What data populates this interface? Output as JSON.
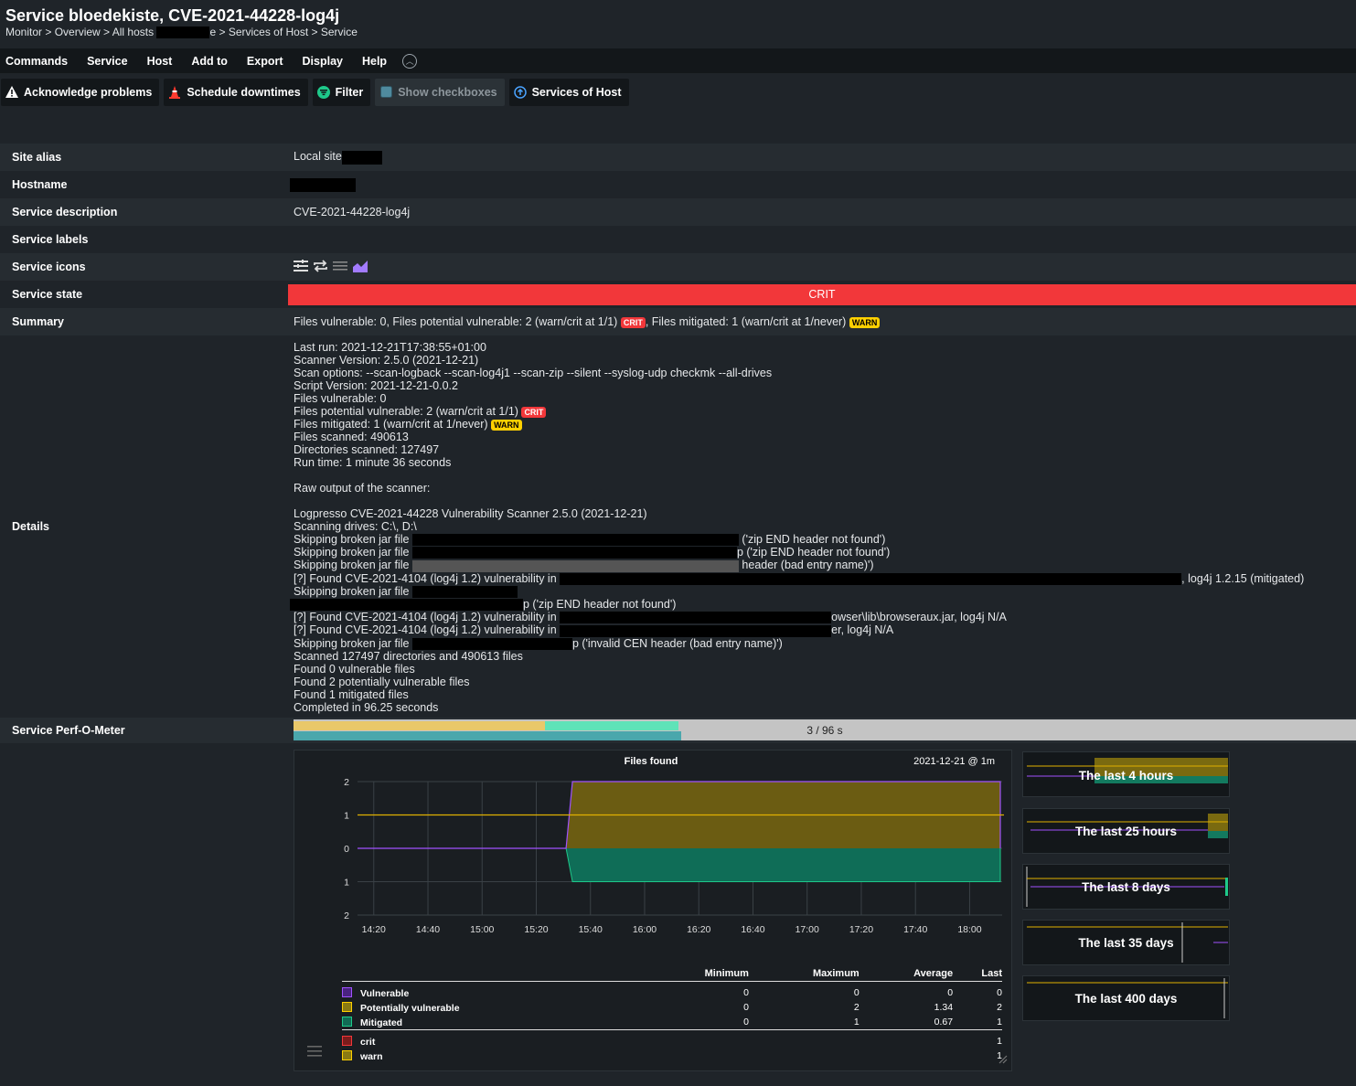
{
  "header": {
    "title": "Service bloedekiste, CVE-2021-44228-log4j",
    "breadcrumb": [
      "Monitor",
      "Overview",
      "All hosts",
      "e",
      "Services of Host",
      "Service"
    ],
    "separator": " > "
  },
  "menu": [
    "Commands",
    "Service",
    "Host",
    "Add to",
    "Export",
    "Display",
    "Help"
  ],
  "toolbar": {
    "acknowledge": "Acknowledge problems",
    "downtimes": "Schedule downtimes",
    "filter": "Filter",
    "checkboxes": "Show checkboxes",
    "services_of_host": "Services of Host"
  },
  "info": {
    "site_alias_label": "Site alias",
    "site_alias_value": "Local site",
    "hostname_label": "Hostname",
    "service_description_label": "Service description",
    "service_description_value": "CVE-2021-44228-log4j",
    "service_labels_label": "Service labels",
    "service_icons_label": "Service icons",
    "service_state_label": "Service state",
    "service_state_value": "CRIT",
    "summary_label": "Summary",
    "summary_part1": "Files vulnerable: 0, Files potential vulnerable: 2 (warn/crit at 1/1)",
    "summary_badge1": "CRIT",
    "summary_part2": ", Files mitigated: 1 (warn/crit at 1/never)",
    "summary_badge2": "WARN",
    "details_label": "Details",
    "perf_label": "Service Perf-O-Meter"
  },
  "details": {
    "l1": "Last run: 2021-12-21T17:38:55+01:00",
    "l2": "Scanner Version: 2.5.0 (2021-12-21)",
    "l3": "Scan options: --scan-logback --scan-log4j1 --scan-zip --silent --syslog-udp checkmk --all-drives",
    "l4": "Script Version: 2021-12-21-0.0.2",
    "l5": "Files vulnerable: 0",
    "l6": "Files potential vulnerable: 2 (warn/crit at 1/1)",
    "l6_badge": "CRIT",
    "l7": "Files mitigated: 1 (warn/crit at 1/never)",
    "l7_badge": "WARN",
    "l8": "Files scanned: 490613",
    "l9": "Directories scanned: 127497",
    "l10": "Run time: 1 minute 36 seconds",
    "l11": "Raw output of the scanner:",
    "l12": "Logpresso CVE-2021-44228 Vulnerability Scanner 2.5.0 (2021-12-21)",
    "l13": "Scanning drives: C:\\, D:\\",
    "l14a": "Skipping broken jar file ",
    "l14b": " ('zip END header not found')",
    "l15a": "Skipping broken jar file ",
    "l15b": "p ('zip END header not found')",
    "l16a": "Skipping broken jar file ",
    "l16b": " header (bad entry name)')",
    "l17a": "[?] Found CVE-2021-4104 (log4j 1.2) vulnerability in ",
    "l17b": ", log4j 1.2.15 (mitigated)",
    "l18a": "Skipping broken jar file ",
    "l19b": "p ('zip END header not found')",
    "l20a": "[?] Found CVE-2021-4104 (log4j 1.2) vulnerability in ",
    "l20b": "owser\\lib\\browseraux.jar, log4j N/A",
    "l21a": "[?] Found CVE-2021-4104 (log4j 1.2) vulnerability in ",
    "l21b": "er, log4j N/A",
    "l22a": "Skipping broken jar file ",
    "l22b": "p ('invalid CEN header (bad entry name)')",
    "l23": "Scanned 127497 directories and 490613 files",
    "l24": "Found 0 vulnerable files",
    "l25": "Found 2 potentially vulnerable files",
    "l26": "Found 1 mitigated files",
    "l27": "Completed in 96.25 seconds"
  },
  "perfometer": {
    "text": "3 / 96 s",
    "bar1_fraction": 0.237,
    "bar2_fraction": 0.362,
    "bar3_fraction": 0.365,
    "colors": {
      "yellow": "#e9c86a",
      "mint": "#5fe3b8",
      "teal": "#4aa7ac",
      "track": "#c4c4c4"
    }
  },
  "colors": {
    "crit": "#f2373a",
    "warn": "#ffd000",
    "vulnerable": "#a052ff",
    "potential": "#ffd000",
    "mitigated": "#1ec98a"
  },
  "chart_data": {
    "type": "area",
    "title": "Files found",
    "timestamp": "2021-12-21 @ 1m",
    "y_ticks": [
      "2",
      "1",
      "0",
      "1",
      "2"
    ],
    "ylim": [
      -2,
      2
    ],
    "x_ticks": [
      "14:20",
      "14:40",
      "15:00",
      "15:20",
      "15:40",
      "16:00",
      "16:20",
      "16:40",
      "17:00",
      "17:20",
      "17:40",
      "18:00"
    ],
    "x_range": [
      "14:14",
      "18:12"
    ],
    "change_time": "15:31",
    "series": [
      {
        "name": "Vulnerable",
        "color": "#a052ff",
        "before": 0,
        "after": 0
      },
      {
        "name": "Potentially vulnerable",
        "color": "#c9a800",
        "before": 0,
        "after": 2
      },
      {
        "name": "Mitigated",
        "color": "#1ec98a",
        "before": 0,
        "after": -1
      }
    ],
    "thresholds": {
      "warn": 1
    },
    "legend_headers": [
      "Minimum",
      "Maximum",
      "Average",
      "Last"
    ],
    "legend_rows": [
      {
        "name": "Vulnerable",
        "color": "#a052ff",
        "min": "0",
        "max": "0",
        "avg": "0",
        "last": "0"
      },
      {
        "name": "Potentially vulnerable",
        "color": "#ffd000",
        "min": "0",
        "max": "2",
        "avg": "1.34",
        "last": "2"
      },
      {
        "name": "Mitigated",
        "color": "#1ec98a",
        "min": "0",
        "max": "1",
        "avg": "0.67",
        "last": "1"
      }
    ],
    "legend_scalars": [
      {
        "name": "crit",
        "color": "#f2373a",
        "last": "1"
      },
      {
        "name": "warn",
        "color": "#ffd000",
        "last": "1"
      }
    ]
  },
  "time_ranges": [
    "The last 4 hours",
    "The last 25 hours",
    "The last 8 days",
    "The last 35 days",
    "The last 400 days"
  ]
}
